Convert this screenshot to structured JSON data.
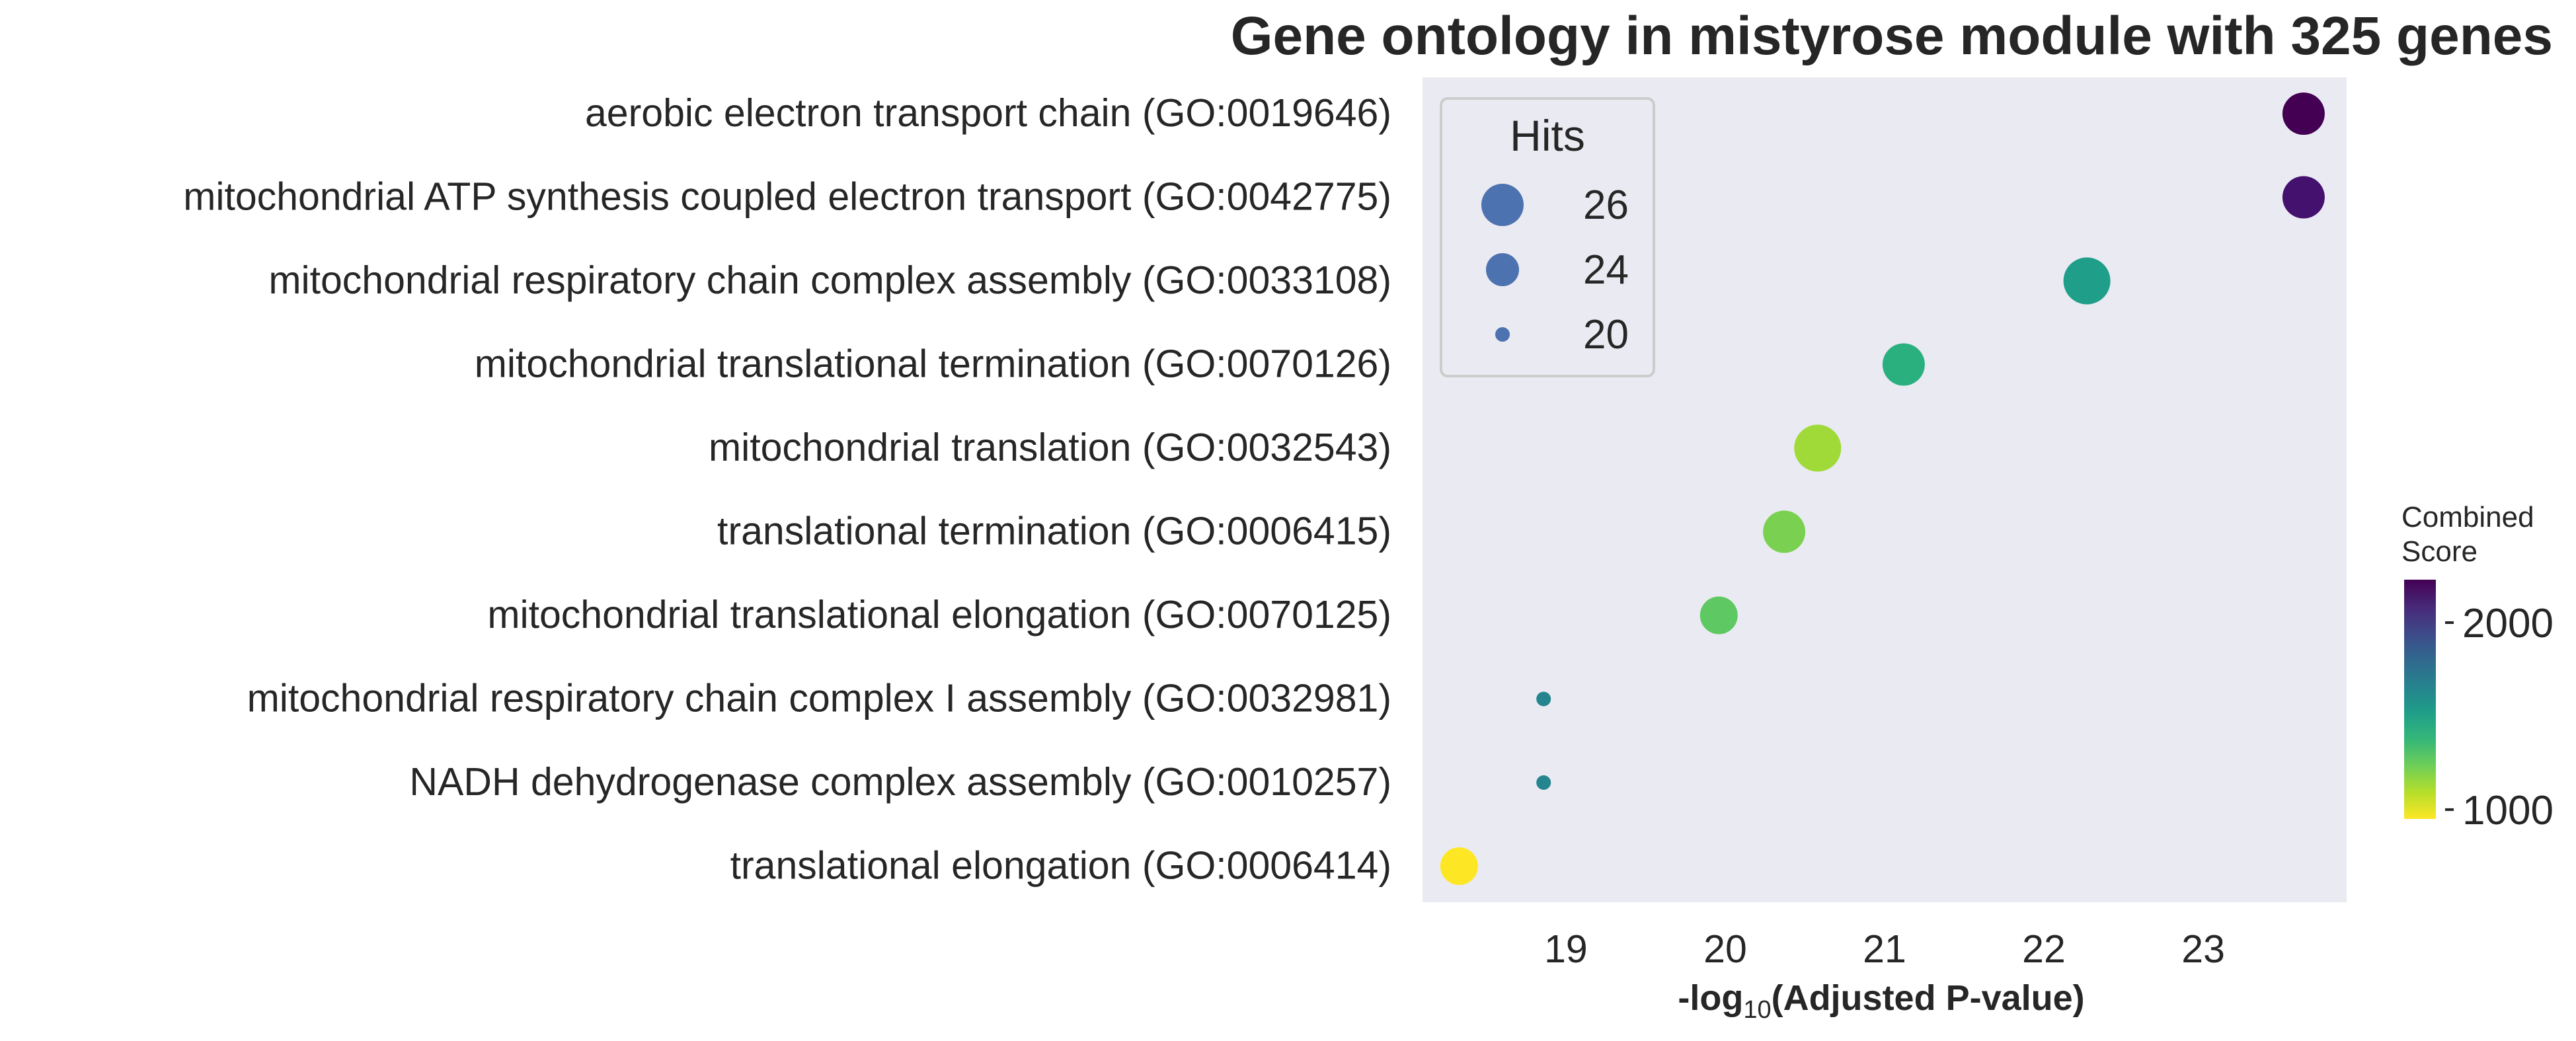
{
  "chart_data": {
    "type": "scatter",
    "title": "Gene ontology in mistyrose module with 325 genes",
    "xlabel_prefix": "-log",
    "xlabel_sub": "10",
    "xlabel_suffix": "(Adjusted P-value)",
    "ylabel": "",
    "xlim": [
      18.1,
      23.9
    ],
    "xticks": [
      "19",
      "20",
      "21",
      "22",
      "23"
    ],
    "grid": false,
    "background_color": "#eaeaf2",
    "categories": [
      "aerobic electron transport chain (GO:0019646)",
      "mitochondrial ATP synthesis coupled electron transport (GO:0042775)",
      "mitochondrial respiratory chain complex assembly (GO:0033108)",
      "mitochondrial translational termination (GO:0070126)",
      "mitochondrial translation (GO:0032543)",
      "translational termination (GO:0006415)",
      "mitochondrial translational elongation (GO:0070125)",
      "mitochondrial respiratory chain complex I assembly (GO:0032981)",
      "NADH dehydrogenase complex assembly (GO:0010257)",
      "translational elongation (GO:0006414)"
    ],
    "points": [
      {
        "term": "aerobic electron transport chain (GO:0019646)",
        "x": 23.63,
        "hits": 26,
        "combined_score": 2230,
        "color": "#440154"
      },
      {
        "term": "mitochondrial ATP synthesis coupled electron transport (GO:0042775)",
        "x": 23.63,
        "hits": 26,
        "combined_score": 2200,
        "color": "#45116f"
      },
      {
        "term": "mitochondrial respiratory chain complex assembly (GO:0033108)",
        "x": 22.27,
        "hits": 27,
        "combined_score": 1620,
        "color": "#1f9e89"
      },
      {
        "term": "mitochondrial translational termination (GO:0070126)",
        "x": 21.12,
        "hits": 26,
        "combined_score": 1420,
        "color": "#2ab07f"
      },
      {
        "term": "mitochondrial translation (GO:0032543)",
        "x": 20.58,
        "hits": 27,
        "combined_score": 1120,
        "color": "#a0da39"
      },
      {
        "term": "translational termination (GO:0006415)",
        "x": 20.37,
        "hits": 26,
        "combined_score": 1180,
        "color": "#7ad151"
      },
      {
        "term": "mitochondrial translational elongation (GO:0070125)",
        "x": 19.96,
        "hits": 25,
        "combined_score": 1220,
        "color": "#5ec962"
      },
      {
        "term": "mitochondrial respiratory chain complex I assembly (GO:0032981)",
        "x": 18.86,
        "hits": 20,
        "combined_score": 1680,
        "color": "#25858e"
      },
      {
        "term": "NADH dehydrogenase complex assembly (GO:0010257)",
        "x": 18.86,
        "hits": 20,
        "combined_score": 1680,
        "color": "#25858e"
      },
      {
        "term": "translational elongation (GO:0006414)",
        "x": 18.33,
        "hits": 25,
        "combined_score": 990,
        "color": "#fde725"
      }
    ],
    "size_legend": {
      "title": "Hits",
      "placement": "upper-left",
      "entries": [
        {
          "label": "26",
          "value": 26
        },
        {
          "label": "24",
          "value": 24
        },
        {
          "label": "20",
          "value": 20
        }
      ],
      "marker_color": "#4c72b0"
    },
    "colorbar": {
      "title_line1": "Combined",
      "title_line2": "Score",
      "range": [
        950,
        2230
      ],
      "ticks": [
        {
          "label": "2000",
          "value": 2000
        },
        {
          "label": "1000",
          "value": 1000
        }
      ],
      "colormap": "viridis_r",
      "stops": [
        "#440154",
        "#482878",
        "#3e4989",
        "#31688e",
        "#26828e",
        "#1f9e89",
        "#35b779",
        "#6ece58",
        "#b5de2b",
        "#fde725"
      ]
    }
  }
}
